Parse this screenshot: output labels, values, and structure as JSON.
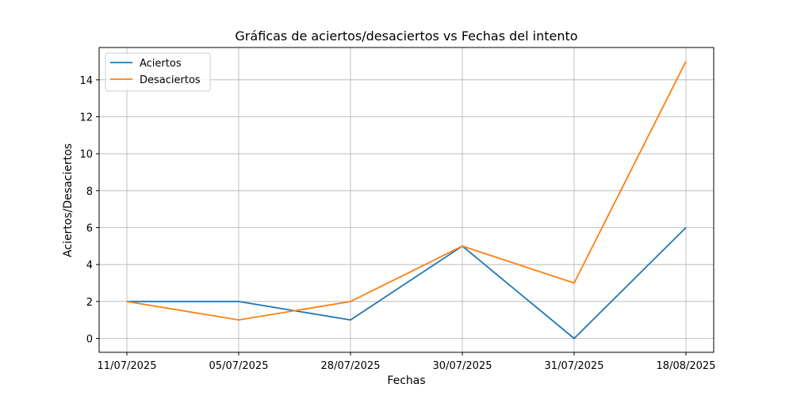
{
  "chart_data": {
    "type": "line",
    "title": "Gráficas de aciertos/desaciertos vs Fechas del intento",
    "xlabel": "Fechas",
    "ylabel": "Aciertos/Desaciertos",
    "categories": [
      "11/07/2025",
      "05/07/2025",
      "28/07/2025",
      "30/07/2025",
      "31/07/2025",
      "18/08/2025"
    ],
    "series": [
      {
        "name": "Aciertos",
        "values": [
          2,
          2,
          1,
          5,
          0,
          6
        ],
        "color": "#1f77b4"
      },
      {
        "name": "Desaciertos",
        "values": [
          2,
          1,
          2,
          5,
          3,
          15
        ],
        "color": "#ff7f0e"
      }
    ],
    "ylim": [
      -0.75,
      15.75
    ],
    "yticks": [
      0,
      2,
      4,
      6,
      8,
      10,
      12,
      14
    ],
    "grid": true,
    "legend": "top-left"
  }
}
